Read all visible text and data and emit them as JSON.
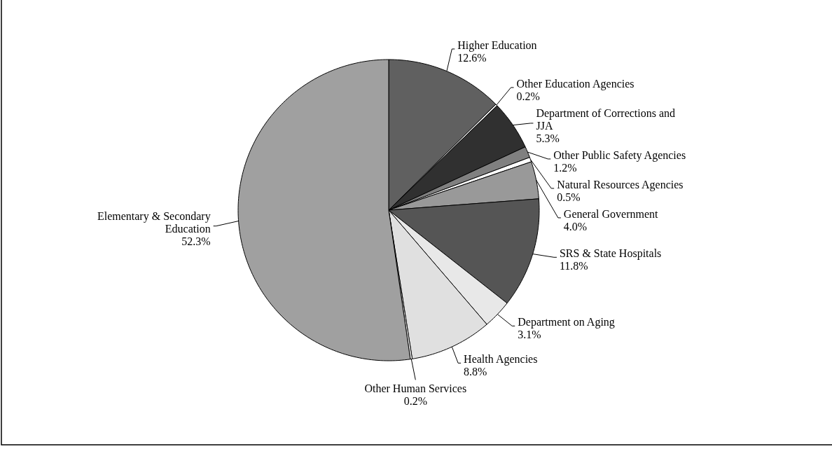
{
  "chart_data": {
    "type": "pie",
    "categories": [
      "Higher Education",
      "Other Education Agencies",
      "Department of Corrections and JJA",
      "Other Public Safety Agencies",
      "Natural Resources Agencies",
      "General Government",
      "SRS & State Hospitals",
      "Department on Aging",
      "Health Agencies",
      "Other Human Services",
      "Elementary & Secondary Education"
    ],
    "values": [
      12.6,
      0.2,
      5.3,
      1.2,
      0.5,
      4.0,
      11.8,
      3.1,
      8.8,
      0.2,
      52.3
    ],
    "value_labels": [
      "12.6%",
      "0.2%",
      "5.3%",
      "1.2%",
      "0.5%",
      "4.0%",
      "11.8%",
      "3.1%",
      "8.8%",
      "0.2%",
      "52.3%"
    ],
    "colors": [
      "#606060",
      "#ffffff",
      "#303030",
      "#808080",
      "#ffffff",
      "#999999",
      "#555555",
      "#e8e8e8",
      "#e0e0e0",
      "#ffffff",
      "#a0a0a0"
    ]
  }
}
